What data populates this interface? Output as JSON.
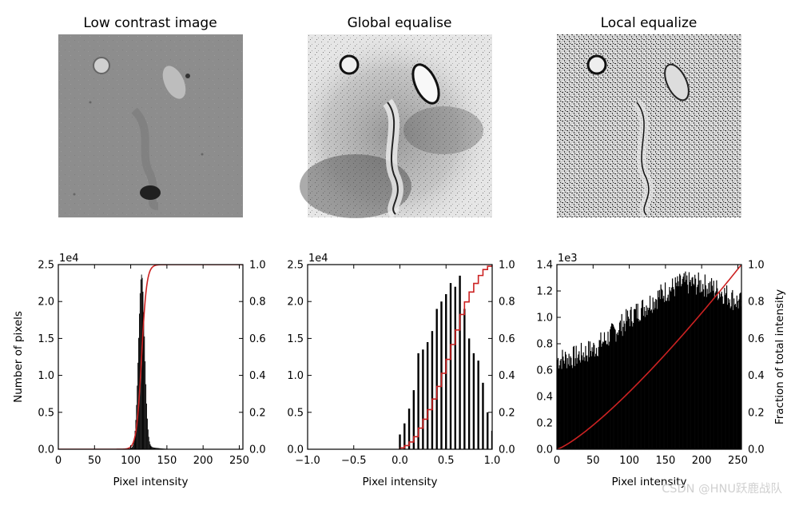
{
  "watermark": "CSDN @HNU跃鹿战队",
  "images": [
    {
      "title": "Low contrast image",
      "style": "low"
    },
    {
      "title": "Global equalise",
      "style": "global"
    },
    {
      "title": "Local equalize",
      "style": "local"
    }
  ],
  "chart_data": [
    {
      "type": "bar",
      "title": "",
      "xlabel": "Pixel intensity",
      "ylabel": "Number of pixels",
      "y2label": "",
      "xlim": [
        0,
        255
      ],
      "ylim": [
        0,
        25000
      ],
      "y2lim": [
        0,
        1
      ],
      "multiplier": "1e4",
      "xticks": [
        "0",
        "50",
        "100",
        "150",
        "200",
        "250"
      ],
      "yticks": [
        "0.0",
        "0.5",
        "1.0",
        "1.5",
        "2.0",
        "2.5"
      ],
      "y2ticks": [
        "0.0",
        "0.2",
        "0.4",
        "0.6",
        "0.8",
        "1.0"
      ],
      "histogram": {
        "kind": "gauss",
        "mean": 115,
        "sigma": 4.2,
        "peak": 23500,
        "tail": 250,
        "tailSigma": 18
      },
      "cdf": {
        "kind": "logistic",
        "center": 115,
        "scale": 3.5,
        "color": "#cc2222"
      }
    },
    {
      "type": "bar",
      "title": "",
      "xlabel": "Pixel intensity",
      "ylabel": "",
      "y2label": "",
      "xlim": [
        -1.0,
        1.0
      ],
      "ylim": [
        0,
        25000
      ],
      "y2lim": [
        0,
        1
      ],
      "multiplier": "1e4",
      "xticks": [
        "−1.0",
        "−0.5",
        "0.0",
        "0.5",
        "1.0"
      ],
      "yticks": [
        "0.0",
        "0.5",
        "1.0",
        "1.5",
        "2.0",
        "2.5"
      ],
      "y2ticks": [
        "0.0",
        "0.2",
        "0.4",
        "0.6",
        "0.8",
        "1.0"
      ],
      "histogram": {
        "kind": "spikes",
        "x": [
          0.0,
          0.05,
          0.1,
          0.15,
          0.2,
          0.25,
          0.3,
          0.35,
          0.4,
          0.45,
          0.5,
          0.55,
          0.6,
          0.65,
          0.7,
          0.75,
          0.8,
          0.85,
          0.9,
          0.95,
          1.0
        ],
        "values": [
          2000,
          3500,
          5500,
          8000,
          13000,
          13500,
          14500,
          16000,
          19000,
          20000,
          21000,
          22500,
          22000,
          23500,
          19000,
          15000,
          13000,
          12000,
          9000,
          5000,
          2500
        ]
      },
      "cdf": {
        "kind": "steps",
        "color": "#cc2222"
      }
    },
    {
      "type": "bar",
      "title": "",
      "xlabel": "Pixel intensity",
      "ylabel": "",
      "y2label": "Fraction of total intensity",
      "xlim": [
        0,
        255
      ],
      "ylim": [
        0,
        1400
      ],
      "y2lim": [
        0,
        1
      ],
      "multiplier": "1e3",
      "xticks": [
        "0",
        "50",
        "100",
        "150",
        "200",
        "250"
      ],
      "yticks": [
        "0.0",
        "0.2",
        "0.4",
        "0.6",
        "0.8",
        "1.0",
        "1.2",
        "1.4"
      ],
      "y2ticks": [
        "0.0",
        "0.2",
        "0.4",
        "0.6",
        "0.8",
        "1.0"
      ],
      "histogram": {
        "kind": "envelope",
        "x": [
          0,
          25,
          50,
          75,
          100,
          125,
          150,
          175,
          200,
          225,
          255
        ],
        "values": [
          680,
          700,
          760,
          870,
          1000,
          1100,
          1200,
          1260,
          1250,
          1200,
          1100
        ]
      },
      "cdf": {
        "kind": "power",
        "exponent": 1.25,
        "color": "#cc2222"
      }
    }
  ]
}
